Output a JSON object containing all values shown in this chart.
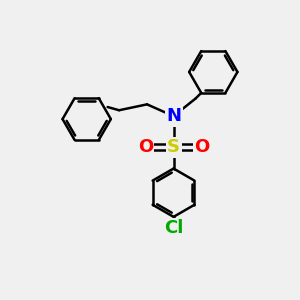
{
  "background_color": "#f0f0f0",
  "bond_color": "#000000",
  "atom_colors": {
    "N": "#0000ff",
    "S": "#cccc00",
    "O": "#ff0000",
    "Cl": "#00aa00",
    "C": "#000000"
  },
  "line_width": 1.8,
  "figsize": [
    3.0,
    3.0
  ],
  "dpi": 100
}
